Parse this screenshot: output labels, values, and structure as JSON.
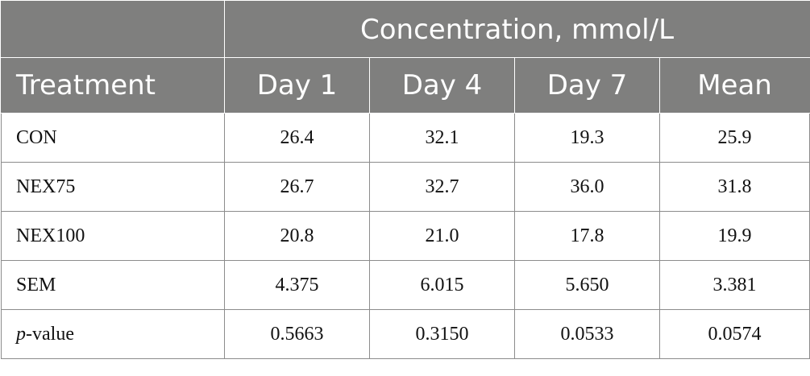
{
  "header": {
    "group_label": "Concentration, mmol/L",
    "treatment_label": "Treatment",
    "columns": [
      "Day 1",
      "Day 4",
      "Day 7",
      "Mean"
    ]
  },
  "rows": [
    {
      "label": "CON",
      "values": [
        "26.4",
        "32.1",
        "19.3",
        "25.9"
      ]
    },
    {
      "label": "NEX75",
      "values": [
        "26.7",
        "32.7",
        "36.0",
        "31.8"
      ]
    },
    {
      "label": "NEX100",
      "values": [
        "20.8",
        "21.0",
        "17.8",
        "19.9"
      ]
    },
    {
      "label": "SEM",
      "values": [
        "4.375",
        "6.015",
        "5.650",
        "3.381"
      ]
    },
    {
      "label_italic": "p",
      "label_rest": "-value",
      "values": [
        "0.5663",
        "0.3150",
        "0.0533",
        "0.0574"
      ]
    }
  ]
}
